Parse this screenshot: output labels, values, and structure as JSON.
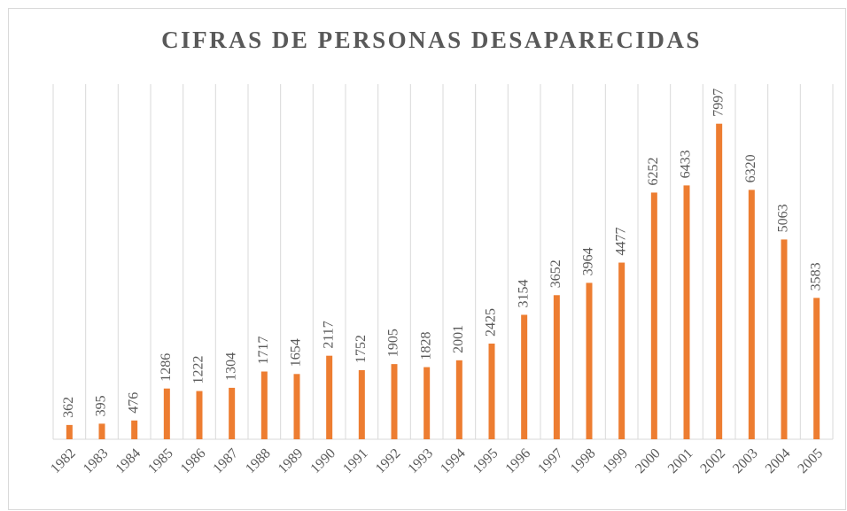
{
  "chart_data": {
    "type": "bar",
    "title": "CIFRAS DE PERSONAS DESAPARECIDAS",
    "categories": [
      "1982",
      "1983",
      "1984",
      "1985",
      "1986",
      "1987",
      "1988",
      "1989",
      "1990",
      "1991",
      "1992",
      "1993",
      "1994",
      "1995",
      "1996",
      "1997",
      "1998",
      "1999",
      "2000",
      "2001",
      "2002",
      "2003",
      "2004",
      "2005"
    ],
    "values": [
      362,
      395,
      476,
      1286,
      1222,
      1304,
      1717,
      1654,
      2117,
      1752,
      1905,
      1828,
      2001,
      2425,
      3154,
      3652,
      3964,
      4477,
      6252,
      6433,
      7997,
      6320,
      5063,
      3583
    ],
    "color": "#ed7d31",
    "ylim": [
      0,
      9000
    ],
    "grid": true
  }
}
